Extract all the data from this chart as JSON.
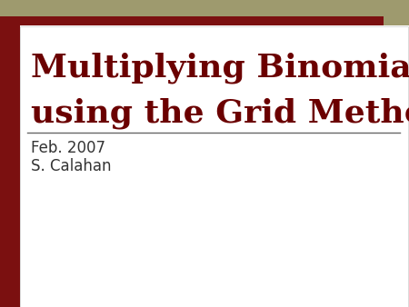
{
  "title_line1": "Multiplying Binomials",
  "title_line2": "using the Grid Method",
  "subtitle_line1": "Feb. 2007",
  "subtitle_line2": "S. Calahan",
  "bg_color": "#ffffff",
  "title_color": "#6b0000",
  "subtitle_color": "#333333",
  "left_bar_color": "#7b1010",
  "top_band1_color": "#9e9a6e",
  "top_band2_color": "#7b1010",
  "top_square_color": "#9e9a6e",
  "divider_color": "#666666",
  "title_fontsize": 26,
  "subtitle_fontsize": 12
}
